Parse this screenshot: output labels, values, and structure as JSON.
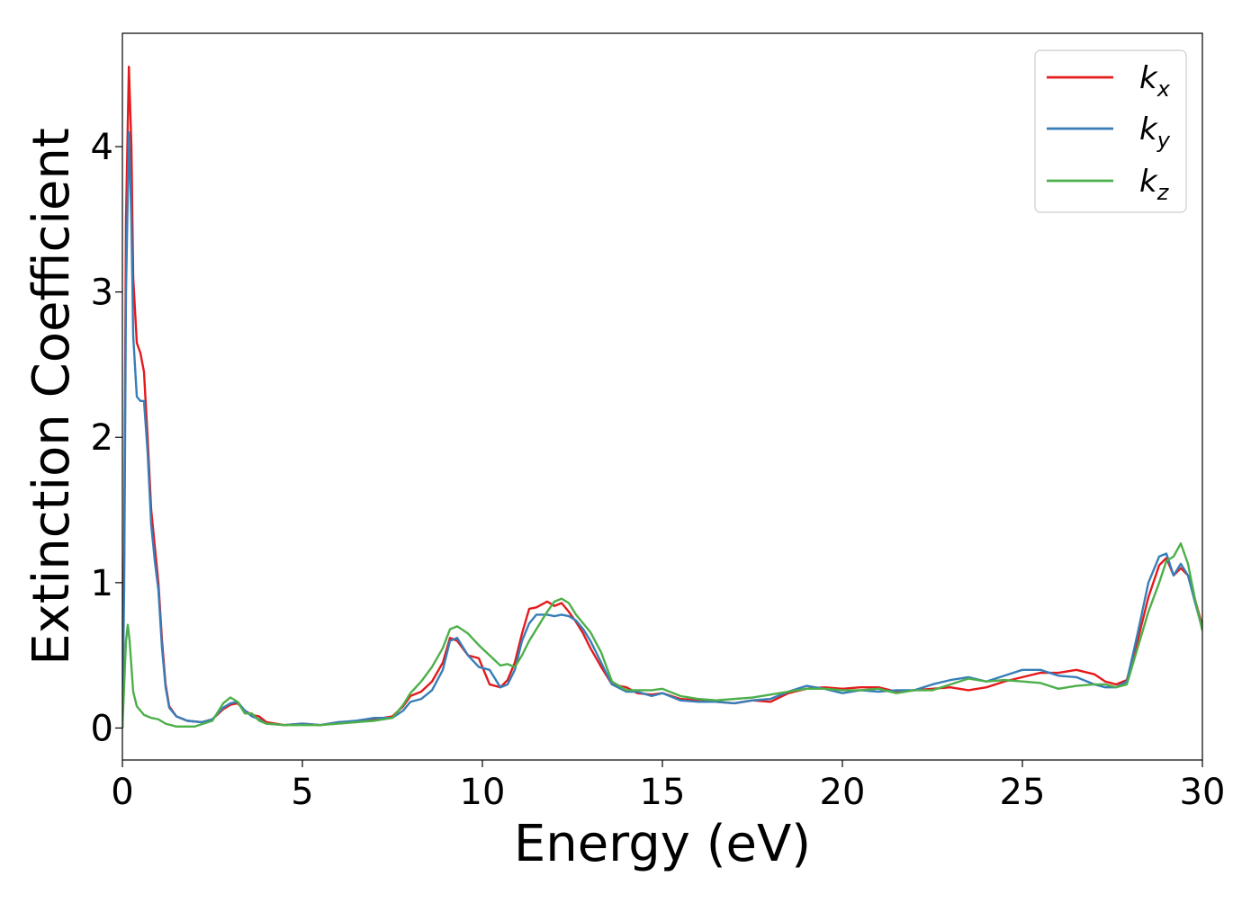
{
  "chart_data": {
    "type": "line",
    "xlabel": "Energy (eV)",
    "ylabel": "Extinction Coefficient",
    "xlim": [
      0,
      30
    ],
    "ylim": [
      -0.22,
      4.78
    ],
    "xticks": [
      "0",
      "5",
      "10",
      "15",
      "20",
      "25",
      "30"
    ],
    "yticks": [
      "0",
      "1",
      "2",
      "3",
      "4"
    ],
    "grid": false,
    "legend_position": "top-right",
    "series": [
      {
        "name": "k_x",
        "label_main": "k",
        "label_sub": "x",
        "color": "#e41a1c",
        "points": [
          [
            0.0,
            0.0
          ],
          [
            0.05,
            1.2
          ],
          [
            0.1,
            3.5
          ],
          [
            0.18,
            4.55
          ],
          [
            0.25,
            4.0
          ],
          [
            0.3,
            3.1
          ],
          [
            0.4,
            2.65
          ],
          [
            0.5,
            2.58
          ],
          [
            0.6,
            2.45
          ],
          [
            0.7,
            2.0
          ],
          [
            0.8,
            1.5
          ],
          [
            0.9,
            1.25
          ],
          [
            1.0,
            1.0
          ],
          [
            1.1,
            0.6
          ],
          [
            1.2,
            0.3
          ],
          [
            1.3,
            0.15
          ],
          [
            1.5,
            0.08
          ],
          [
            1.8,
            0.05
          ],
          [
            2.2,
            0.04
          ],
          [
            2.5,
            0.06
          ],
          [
            2.8,
            0.13
          ],
          [
            3.0,
            0.16
          ],
          [
            3.2,
            0.17
          ],
          [
            3.4,
            0.12
          ],
          [
            3.6,
            0.09
          ],
          [
            3.8,
            0.08
          ],
          [
            4.0,
            0.04
          ],
          [
            4.5,
            0.02
          ],
          [
            5.0,
            0.03
          ],
          [
            5.5,
            0.02
          ],
          [
            6.0,
            0.04
          ],
          [
            6.5,
            0.04
          ],
          [
            7.0,
            0.06
          ],
          [
            7.5,
            0.08
          ],
          [
            7.8,
            0.15
          ],
          [
            8.0,
            0.22
          ],
          [
            8.3,
            0.25
          ],
          [
            8.6,
            0.32
          ],
          [
            8.9,
            0.45
          ],
          [
            9.1,
            0.62
          ],
          [
            9.3,
            0.6
          ],
          [
            9.6,
            0.5
          ],
          [
            9.9,
            0.48
          ],
          [
            10.2,
            0.3
          ],
          [
            10.5,
            0.28
          ],
          [
            10.7,
            0.33
          ],
          [
            10.9,
            0.45
          ],
          [
            11.1,
            0.65
          ],
          [
            11.3,
            0.82
          ],
          [
            11.5,
            0.83
          ],
          [
            11.8,
            0.87
          ],
          [
            12.0,
            0.84
          ],
          [
            12.2,
            0.86
          ],
          [
            12.4,
            0.8
          ],
          [
            12.6,
            0.73
          ],
          [
            12.8,
            0.65
          ],
          [
            13.0,
            0.55
          ],
          [
            13.3,
            0.42
          ],
          [
            13.6,
            0.3
          ],
          [
            14.0,
            0.28
          ],
          [
            14.3,
            0.24
          ],
          [
            14.7,
            0.23
          ],
          [
            15.0,
            0.24
          ],
          [
            15.5,
            0.2
          ],
          [
            16.0,
            0.19
          ],
          [
            16.5,
            0.18
          ],
          [
            17.0,
            0.17
          ],
          [
            17.5,
            0.19
          ],
          [
            18.0,
            0.18
          ],
          [
            18.5,
            0.24
          ],
          [
            19.0,
            0.27
          ],
          [
            19.5,
            0.28
          ],
          [
            20.0,
            0.27
          ],
          [
            20.5,
            0.28
          ],
          [
            21.0,
            0.28
          ],
          [
            21.5,
            0.25
          ],
          [
            22.0,
            0.26
          ],
          [
            22.5,
            0.27
          ],
          [
            23.0,
            0.28
          ],
          [
            23.5,
            0.26
          ],
          [
            24.0,
            0.28
          ],
          [
            24.5,
            0.32
          ],
          [
            25.0,
            0.35
          ],
          [
            25.5,
            0.38
          ],
          [
            26.0,
            0.38
          ],
          [
            26.5,
            0.4
          ],
          [
            27.0,
            0.37
          ],
          [
            27.3,
            0.32
          ],
          [
            27.6,
            0.3
          ],
          [
            27.9,
            0.33
          ],
          [
            28.2,
            0.6
          ],
          [
            28.5,
            0.9
          ],
          [
            28.8,
            1.12
          ],
          [
            29.0,
            1.17
          ],
          [
            29.2,
            1.05
          ],
          [
            29.4,
            1.1
          ],
          [
            29.6,
            1.05
          ],
          [
            29.8,
            0.88
          ],
          [
            30.0,
            0.7
          ]
        ]
      },
      {
        "name": "k_y",
        "label_main": "k",
        "label_sub": "y",
        "color": "#377eb8",
        "points": [
          [
            0.0,
            0.0
          ],
          [
            0.05,
            1.0
          ],
          [
            0.1,
            3.0
          ],
          [
            0.18,
            4.1
          ],
          [
            0.25,
            3.5
          ],
          [
            0.3,
            2.7
          ],
          [
            0.4,
            2.28
          ],
          [
            0.5,
            2.25
          ],
          [
            0.6,
            2.25
          ],
          [
            0.7,
            1.9
          ],
          [
            0.8,
            1.4
          ],
          [
            0.9,
            1.15
          ],
          [
            1.0,
            0.95
          ],
          [
            1.1,
            0.55
          ],
          [
            1.2,
            0.28
          ],
          [
            1.3,
            0.14
          ],
          [
            1.5,
            0.08
          ],
          [
            1.8,
            0.05
          ],
          [
            2.2,
            0.04
          ],
          [
            2.5,
            0.06
          ],
          [
            2.8,
            0.14
          ],
          [
            3.0,
            0.17
          ],
          [
            3.2,
            0.18
          ],
          [
            3.4,
            0.12
          ],
          [
            3.6,
            0.08
          ],
          [
            3.8,
            0.06
          ],
          [
            4.0,
            0.03
          ],
          [
            4.5,
            0.02
          ],
          [
            5.0,
            0.03
          ],
          [
            5.5,
            0.02
          ],
          [
            6.0,
            0.04
          ],
          [
            6.5,
            0.05
          ],
          [
            7.0,
            0.07
          ],
          [
            7.5,
            0.07
          ],
          [
            7.8,
            0.12
          ],
          [
            8.0,
            0.18
          ],
          [
            8.3,
            0.2
          ],
          [
            8.6,
            0.26
          ],
          [
            8.9,
            0.4
          ],
          [
            9.1,
            0.6
          ],
          [
            9.3,
            0.62
          ],
          [
            9.6,
            0.5
          ],
          [
            9.9,
            0.42
          ],
          [
            10.2,
            0.4
          ],
          [
            10.5,
            0.28
          ],
          [
            10.7,
            0.3
          ],
          [
            10.9,
            0.4
          ],
          [
            11.1,
            0.6
          ],
          [
            11.3,
            0.72
          ],
          [
            11.5,
            0.78
          ],
          [
            11.8,
            0.78
          ],
          [
            12.0,
            0.77
          ],
          [
            12.2,
            0.78
          ],
          [
            12.4,
            0.77
          ],
          [
            12.6,
            0.74
          ],
          [
            12.8,
            0.68
          ],
          [
            13.0,
            0.6
          ],
          [
            13.3,
            0.45
          ],
          [
            13.6,
            0.3
          ],
          [
            14.0,
            0.25
          ],
          [
            14.3,
            0.25
          ],
          [
            14.7,
            0.22
          ],
          [
            15.0,
            0.24
          ],
          [
            15.5,
            0.19
          ],
          [
            16.0,
            0.18
          ],
          [
            16.5,
            0.18
          ],
          [
            17.0,
            0.17
          ],
          [
            17.5,
            0.19
          ],
          [
            18.0,
            0.2
          ],
          [
            18.5,
            0.25
          ],
          [
            19.0,
            0.29
          ],
          [
            19.5,
            0.27
          ],
          [
            20.0,
            0.24
          ],
          [
            20.5,
            0.26
          ],
          [
            21.0,
            0.25
          ],
          [
            21.5,
            0.26
          ],
          [
            22.0,
            0.26
          ],
          [
            22.5,
            0.3
          ],
          [
            23.0,
            0.33
          ],
          [
            23.5,
            0.35
          ],
          [
            24.0,
            0.32
          ],
          [
            24.5,
            0.36
          ],
          [
            25.0,
            0.4
          ],
          [
            25.5,
            0.4
          ],
          [
            26.0,
            0.36
          ],
          [
            26.5,
            0.35
          ],
          [
            27.0,
            0.3
          ],
          [
            27.3,
            0.28
          ],
          [
            27.6,
            0.28
          ],
          [
            27.9,
            0.32
          ],
          [
            28.2,
            0.65
          ],
          [
            28.5,
            1.0
          ],
          [
            28.8,
            1.18
          ],
          [
            29.0,
            1.2
          ],
          [
            29.2,
            1.05
          ],
          [
            29.4,
            1.13
          ],
          [
            29.6,
            1.05
          ],
          [
            29.8,
            0.86
          ],
          [
            30.0,
            0.68
          ]
        ]
      },
      {
        "name": "k_z",
        "label_main": "k",
        "label_sub": "z",
        "color": "#4daf4a",
        "points": [
          [
            0.0,
            0.0
          ],
          [
            0.05,
            0.3
          ],
          [
            0.1,
            0.6
          ],
          [
            0.15,
            0.71
          ],
          [
            0.2,
            0.6
          ],
          [
            0.3,
            0.25
          ],
          [
            0.4,
            0.15
          ],
          [
            0.6,
            0.09
          ],
          [
            0.8,
            0.07
          ],
          [
            1.0,
            0.06
          ],
          [
            1.2,
            0.03
          ],
          [
            1.5,
            0.01
          ],
          [
            2.0,
            0.01
          ],
          [
            2.5,
            0.05
          ],
          [
            2.8,
            0.17
          ],
          [
            3.0,
            0.21
          ],
          [
            3.2,
            0.18
          ],
          [
            3.4,
            0.1
          ],
          [
            3.6,
            0.1
          ],
          [
            3.8,
            0.05
          ],
          [
            4.0,
            0.03
          ],
          [
            4.5,
            0.02
          ],
          [
            5.0,
            0.02
          ],
          [
            5.5,
            0.02
          ],
          [
            6.0,
            0.03
          ],
          [
            6.5,
            0.04
          ],
          [
            7.0,
            0.05
          ],
          [
            7.5,
            0.07
          ],
          [
            7.8,
            0.16
          ],
          [
            8.0,
            0.24
          ],
          [
            8.3,
            0.32
          ],
          [
            8.6,
            0.42
          ],
          [
            8.9,
            0.55
          ],
          [
            9.1,
            0.68
          ],
          [
            9.3,
            0.7
          ],
          [
            9.6,
            0.65
          ],
          [
            9.9,
            0.57
          ],
          [
            10.2,
            0.5
          ],
          [
            10.5,
            0.43
          ],
          [
            10.7,
            0.44
          ],
          [
            10.9,
            0.42
          ],
          [
            11.1,
            0.5
          ],
          [
            11.3,
            0.6
          ],
          [
            11.5,
            0.68
          ],
          [
            11.8,
            0.8
          ],
          [
            12.0,
            0.87
          ],
          [
            12.2,
            0.89
          ],
          [
            12.4,
            0.86
          ],
          [
            12.6,
            0.78
          ],
          [
            12.8,
            0.72
          ],
          [
            13.0,
            0.66
          ],
          [
            13.3,
            0.52
          ],
          [
            13.6,
            0.32
          ],
          [
            14.0,
            0.26
          ],
          [
            14.3,
            0.26
          ],
          [
            14.7,
            0.26
          ],
          [
            15.0,
            0.27
          ],
          [
            15.5,
            0.22
          ],
          [
            16.0,
            0.2
          ],
          [
            16.5,
            0.19
          ],
          [
            17.0,
            0.2
          ],
          [
            17.5,
            0.21
          ],
          [
            18.0,
            0.23
          ],
          [
            18.5,
            0.25
          ],
          [
            19.0,
            0.27
          ],
          [
            19.5,
            0.27
          ],
          [
            20.0,
            0.26
          ],
          [
            20.5,
            0.26
          ],
          [
            21.0,
            0.27
          ],
          [
            21.5,
            0.24
          ],
          [
            22.0,
            0.26
          ],
          [
            22.5,
            0.26
          ],
          [
            23.0,
            0.3
          ],
          [
            23.5,
            0.34
          ],
          [
            24.0,
            0.32
          ],
          [
            24.5,
            0.33
          ],
          [
            25.0,
            0.32
          ],
          [
            25.5,
            0.31
          ],
          [
            26.0,
            0.27
          ],
          [
            26.5,
            0.29
          ],
          [
            27.0,
            0.3
          ],
          [
            27.3,
            0.3
          ],
          [
            27.6,
            0.28
          ],
          [
            27.9,
            0.3
          ],
          [
            28.2,
            0.55
          ],
          [
            28.5,
            0.8
          ],
          [
            28.8,
            1.0
          ],
          [
            29.0,
            1.15
          ],
          [
            29.2,
            1.18
          ],
          [
            29.4,
            1.27
          ],
          [
            29.6,
            1.13
          ],
          [
            29.8,
            0.88
          ],
          [
            30.0,
            0.67
          ]
        ]
      }
    ]
  }
}
